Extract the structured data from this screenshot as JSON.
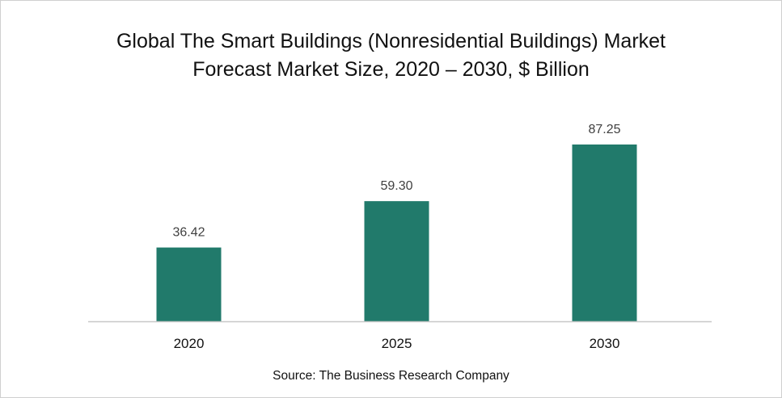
{
  "chart_data": {
    "type": "bar",
    "title_lines": [
      "Global The Smart Buildings (Nonresidential Buildings) Market",
      "Forecast Market Size,  2020 – 2030, $ Billion"
    ],
    "categories": [
      "2020",
      "2025",
      "2030"
    ],
    "values": [
      36.42,
      59.3,
      87.25
    ],
    "data_labels": [
      "36.42",
      "59.30",
      "87.25"
    ],
    "xlabel": "",
    "ylabel": "",
    "ylim": [
      0,
      96
    ],
    "grid": false,
    "legend": "none",
    "bar_color": "#217A6B",
    "source": "Source: The Business Research Company"
  }
}
